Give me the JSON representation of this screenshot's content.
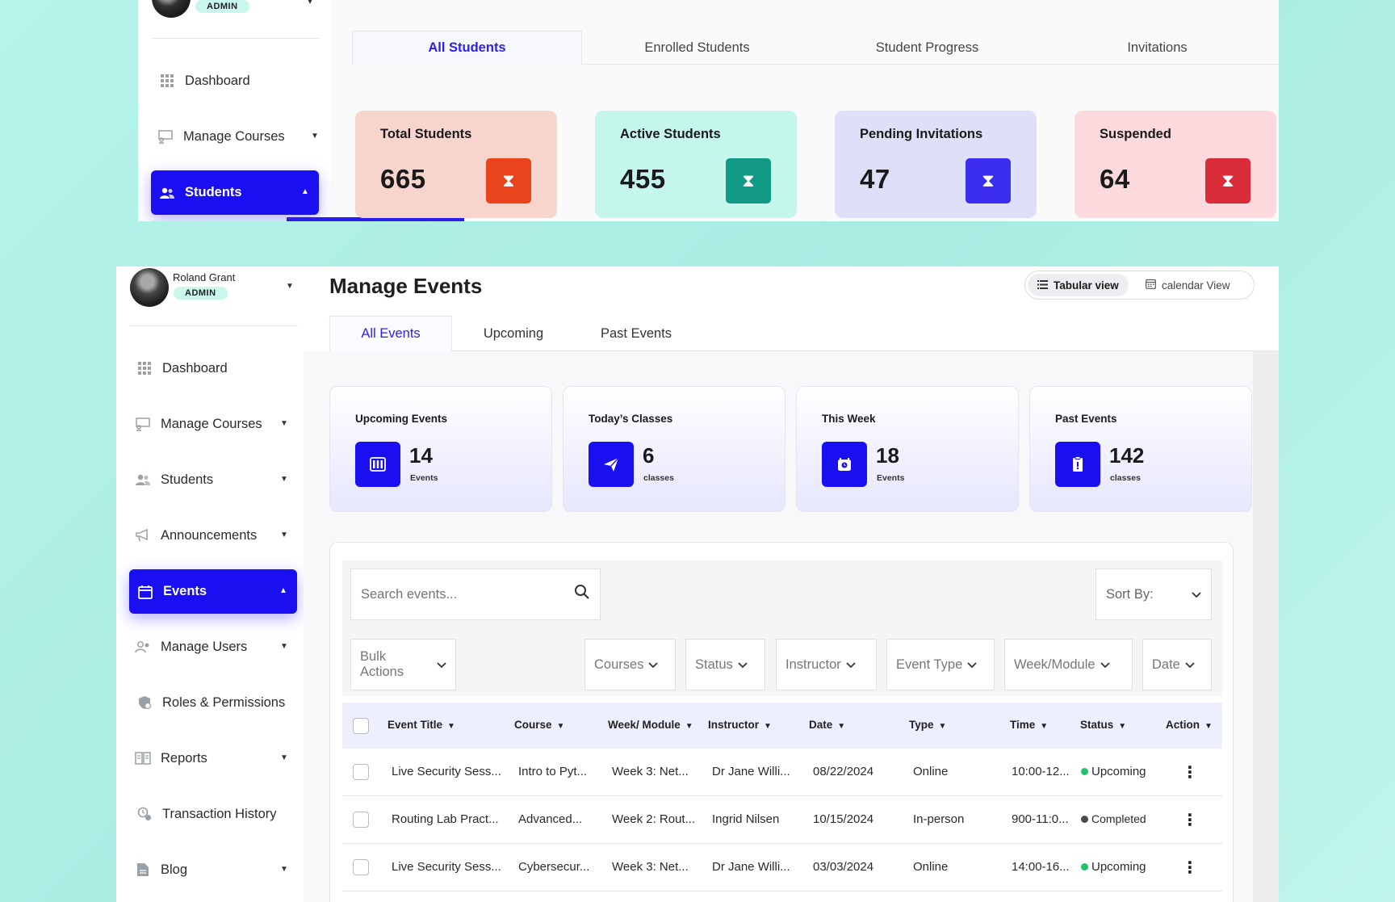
{
  "top_panel": {
    "user_role": "ADMIN",
    "nav": {
      "dashboard": "Dashboard",
      "manage_courses": "Manage Courses",
      "students": "Students"
    },
    "tabs": [
      "All Students",
      "Enrolled Students",
      "Student Progress",
      "Invitations"
    ],
    "stats": [
      {
        "label": "Total Students",
        "value": "665",
        "color": "#e9441c",
        "bg": "#f8d5cc"
      },
      {
        "label": "Active Students",
        "value": "455",
        "color": "#139a87",
        "bg": "#c4f6ec"
      },
      {
        "label": "Pending Invitations",
        "value": "47",
        "color": "#3b2ef0",
        "bg": "#dedff8"
      },
      {
        "label": "Suspended",
        "value": "64",
        "color": "#db2c39",
        "bg": "#fbd9dc"
      }
    ]
  },
  "main_panel": {
    "user": {
      "name": "Roland Grant",
      "role": "ADMIN"
    },
    "nav": [
      {
        "label": "Dashboard",
        "icon": "grid-icon",
        "caret": false
      },
      {
        "label": "Manage Courses",
        "icon": "courses-icon",
        "caret": true
      },
      {
        "label": "Students",
        "icon": "users-icon",
        "caret": true
      },
      {
        "label": "Announcements",
        "icon": "megaphone-icon",
        "caret": true
      },
      {
        "label": "Events",
        "icon": "calendar-icon",
        "caret": true,
        "active": true
      },
      {
        "label": "Manage Users",
        "icon": "user-cog-icon",
        "caret": true
      },
      {
        "label": "Roles & Permissions",
        "icon": "shield-icon",
        "caret": false
      },
      {
        "label": "Reports",
        "icon": "book-icon",
        "caret": true
      },
      {
        "label": "Transaction History",
        "icon": "history-icon",
        "caret": false
      },
      {
        "label": "Blog",
        "icon": "document-icon",
        "caret": true
      }
    ],
    "page_title": "Manage Events",
    "view_toggle": {
      "tabular": "Tabular view",
      "calendar": "calendar View"
    },
    "tabs": [
      "All Events",
      "Upcoming",
      "Past Events"
    ],
    "event_stats": [
      {
        "label": "Upcoming Events",
        "value": "14",
        "unit": "Events",
        "icon": "sliders-icon"
      },
      {
        "label": "Today’s Classes",
        "value": "6",
        "unit": "classes",
        "icon": "paper-plane-icon"
      },
      {
        "label": "This Week",
        "value": "18",
        "unit": "Events",
        "icon": "alarm-icon"
      },
      {
        "label": "Past Events",
        "value": "142",
        "unit": "classes",
        "icon": "clipboard-icon"
      }
    ],
    "search": {
      "placeholder": "Search events..."
    },
    "sort": {
      "label": "Sort By:"
    },
    "bulk_actions": "Bulk Actions",
    "filters": [
      "Courses",
      "Status",
      "Instructor",
      "Event Type",
      "Week/Module",
      "Date"
    ],
    "table": {
      "columns": [
        "Event Title",
        "Course",
        "Week/ Module",
        "Instructor",
        "Date",
        "Type",
        "Time",
        "Status",
        "Action"
      ],
      "rows": [
        {
          "title": "Live Security Sess...",
          "course": "Intro to Pyt...",
          "week": "Week 3: Net...",
          "instructor": "Dr Jane Willi...",
          "date": "08/22/2024",
          "type": "Online",
          "time": "10:00-12...",
          "status": "Upcoming",
          "status_color": "#1fc46a"
        },
        {
          "title": "Routing Lab Pract...",
          "course": "Advanced...",
          "week": "Week 2: Rout...",
          "instructor": "Ingrid Nilsen",
          "date": "10/15/2024",
          "type": "In-person",
          "time": "900-11:0...",
          "status": "Completed",
          "status_color": "#4a4a55"
        },
        {
          "title": "Live Security Sess...",
          "course": "Cybersecur...",
          "week": "Week 3: Net...",
          "instructor": "Dr Jane Willi...",
          "date": "03/03/2024",
          "type": "Online",
          "time": "14:00-16...",
          "status": "Upcoming",
          "status_color": "#1fc46a"
        }
      ]
    }
  },
  "colors": {
    "accent": "#1a0ff0",
    "page_bg": "#b6f3ea"
  }
}
